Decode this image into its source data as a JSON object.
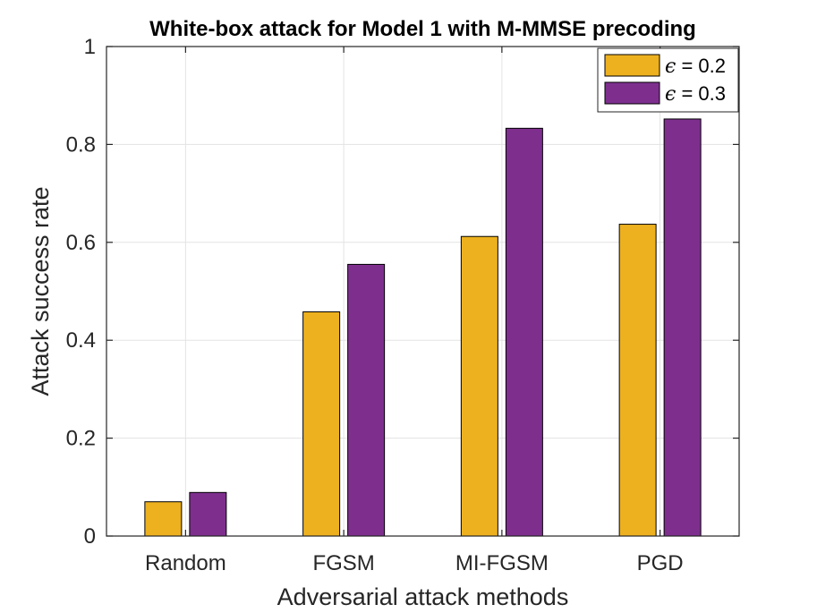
{
  "chart_data": {
    "type": "bar",
    "title": "White-box attack for Model 1 with M-MMSE precoding",
    "xlabel": "Adversarial attack methods",
    "ylabel": "Attack success rate",
    "categories": [
      "Random",
      "FGSM",
      "MI-FGSM",
      "PGD"
    ],
    "series": [
      {
        "name": "ϵ = 0.2",
        "symbol": "ϵ",
        "value_label": " = 0.2",
        "color": "#EDB120",
        "values": [
          0.07,
          0.458,
          0.612,
          0.637
        ]
      },
      {
        "name": "ϵ = 0.3",
        "symbol": "ϵ",
        "value_label": " = 0.3",
        "color": "#7E2F8E",
        "values": [
          0.089,
          0.555,
          0.833,
          0.852
        ]
      }
    ],
    "ylim": [
      0,
      1
    ],
    "yticks": [
      0,
      0.2,
      0.4,
      0.6,
      0.8,
      1
    ],
    "ytick_labels": [
      "0",
      "0.2",
      "0.4",
      "0.6",
      "0.8",
      "1"
    ],
    "grid": true,
    "legend_position": "top-right"
  }
}
